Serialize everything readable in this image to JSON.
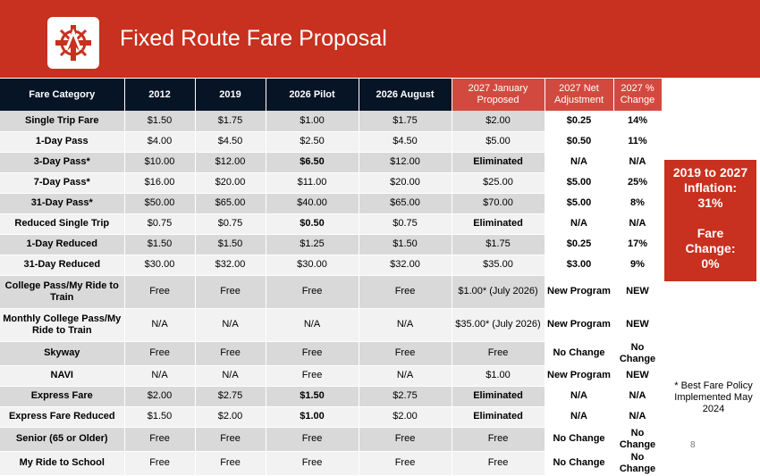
{
  "header": {
    "title": "Fixed Route Fare Proposal"
  },
  "table": {
    "columns": [
      "Fare Category",
      "2012",
      "2019",
      "2026 Pilot",
      "2026 August",
      "2027  January Proposed",
      "2027 Net Adjustment",
      "2027 % Change"
    ],
    "rows": [
      {
        "cat": "Single Trip Fare",
        "v2012": "$1.50",
        "v2019": "$1.75",
        "pilot": "$1.00",
        "aug": "$1.75",
        "jan": "$2.00",
        "net": "$0.25",
        "pct": "14%"
      },
      {
        "cat": "1-Day Pass",
        "v2012": "$4.00",
        "v2019": "$4.50",
        "pilot": "$2.50",
        "aug": "$4.50",
        "jan": "$5.00",
        "net": "$0.50",
        "pct": "11%"
      },
      {
        "cat": "3-Day Pass*",
        "v2012": "$10.00",
        "v2019": "$12.00",
        "pilot": "$6.50",
        "aug": "$12.00",
        "jan": "Eliminated",
        "net": "N/A",
        "pct": "N/A"
      },
      {
        "cat": "7-Day Pass*",
        "v2012": "$16.00",
        "v2019": "$20.00",
        "pilot": "$11.00",
        "aug": "$20.00",
        "jan": "$25.00",
        "net": "$5.00",
        "pct": "25%"
      },
      {
        "cat": "31-Day Pass*",
        "v2012": "$50.00",
        "v2019": "$65.00",
        "pilot": "$40.00",
        "aug": "$65.00",
        "jan": "$70.00",
        "net": "$5.00",
        "pct": "8%"
      },
      {
        "cat": "Reduced Single Trip",
        "v2012": "$0.75",
        "v2019": "$0.75",
        "pilot": "$0.50",
        "aug": "$0.75",
        "jan": "Eliminated",
        "net": "N/A",
        "pct": "N/A"
      },
      {
        "cat": "1-Day Reduced",
        "v2012": "$1.50",
        "v2019": "$1.50",
        "pilot": "$1.25",
        "aug": "$1.50",
        "jan": "$1.75",
        "net": "$0.25",
        "pct": "17%"
      },
      {
        "cat": "31-Day Reduced",
        "v2012": "$30.00",
        "v2019": "$32.00",
        "pilot": "$30.00",
        "aug": "$32.00",
        "jan": "$35.00",
        "net": "$3.00",
        "pct": "9%"
      },
      {
        "cat": "College Pass/My Ride to Train",
        "v2012": "Free",
        "v2019": "Free",
        "pilot": "Free",
        "aug": "Free",
        "jan": "$1.00* (July 2026)",
        "net": "New Program",
        "pct": "NEW"
      },
      {
        "cat": "Monthly College Pass/My Ride to Train",
        "v2012": "N/A",
        "v2019": "N/A",
        "pilot": "N/A",
        "aug": "N/A",
        "jan": "$35.00* (July 2026)",
        "net": "New Program",
        "pct": "NEW"
      },
      {
        "cat": "Skyway",
        "v2012": "Free",
        "v2019": "Free",
        "pilot": "Free",
        "aug": "Free",
        "jan": "Free",
        "net": "No Change",
        "pct": "No Change"
      },
      {
        "cat": "NAVI",
        "v2012": "N/A",
        "v2019": "N/A",
        "pilot": "Free",
        "aug": "N/A",
        "jan": "$1.00",
        "net": "New Program",
        "pct": "NEW"
      },
      {
        "cat": "Express Fare",
        "v2012": "$2.00",
        "v2019": "$2.75",
        "pilot": "$1.50",
        "aug": "$2.75",
        "jan": "Eliminated",
        "net": "N/A",
        "pct": "N/A"
      },
      {
        "cat": "Express Fare Reduced",
        "v2012": "$1.50",
        "v2019": "$2.00",
        "pilot": "$1.00",
        "aug": "$2.00",
        "jan": "Eliminated",
        "net": "N/A",
        "pct": "N/A"
      },
      {
        "cat": "Senior (65 or Older)",
        "v2012": "Free",
        "v2019": "Free",
        "pilot": "Free",
        "aug": "Free",
        "jan": "Free",
        "net": "No Change",
        "pct": "No Change"
      },
      {
        "cat": "My Ride to School",
        "v2012": "Free",
        "v2019": "Free",
        "pilot": "Free",
        "aug": "Free",
        "jan": "Free",
        "net": "No Change",
        "pct": "No Change"
      }
    ]
  },
  "inflation_box": {
    "line1": "2019 to 2027",
    "line2": "Inflation:",
    "line3": "31%",
    "line4": "Fare",
    "line5": "Change:",
    "line6": "0%"
  },
  "footnote": "* Best Fare Policy Implemented May 2024",
  "page_number": "8",
  "colors": {
    "header_red": "#c8301f",
    "navy": "#071426",
    "green": "#2e9a3a"
  }
}
